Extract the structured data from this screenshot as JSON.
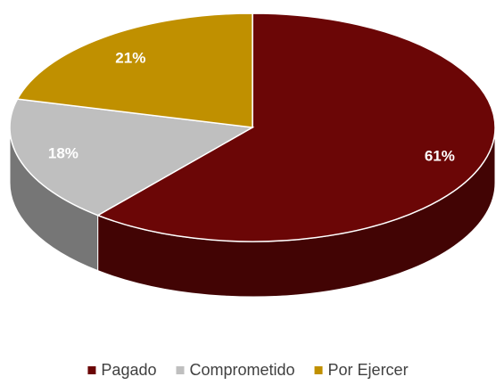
{
  "chart_data": {
    "type": "pie",
    "categories": [
      "Pagado",
      "Comprometido",
      "Por Ejercer"
    ],
    "values": [
      61,
      18,
      21
    ],
    "value_labels": [
      "61%",
      "18%",
      "21%"
    ],
    "colors": [
      "#6b0606",
      "#bfbfbf",
      "#c09000"
    ],
    "legend": "bottom"
  }
}
